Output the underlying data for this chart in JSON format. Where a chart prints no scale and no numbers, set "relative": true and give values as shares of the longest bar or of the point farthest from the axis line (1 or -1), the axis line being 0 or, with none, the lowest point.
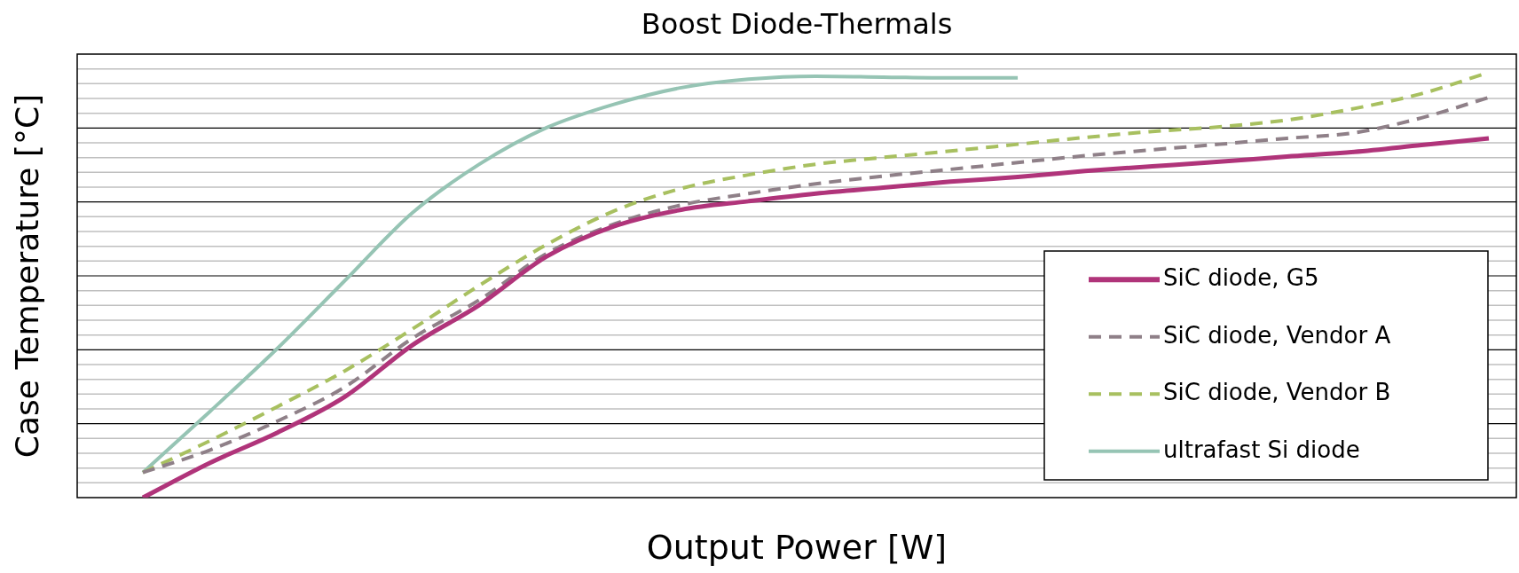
{
  "chart_data": {
    "type": "line",
    "title": "Boost Diode-Thermals",
    "xlabel": "Output Power [W]",
    "ylabel": "Case Temperature [°C]",
    "relative": true,
    "grid": true,
    "legend": "bottom right",
    "marker": "none",
    "categories": [
      null,
      null,
      null,
      null,
      null,
      null,
      null,
      null,
      null,
      null,
      null,
      null,
      null,
      null,
      null,
      null,
      null,
      null,
      null,
      null,
      null
    ],
    "series": [
      {
        "name": "SiC diode, G5",
        "color": "#b0347a",
        "line_style": "solid",
        "values": [
          0,
          0.082,
          0.153,
          0.237,
          0.358,
          0.453,
          0.567,
          0.638,
          0.677,
          0.697,
          0.715,
          0.729,
          0.743,
          0.754,
          0.768,
          0.779,
          0.79,
          0.802,
          0.813,
          0.829,
          0.845
        ]
      },
      {
        "name": "SiC diode, Vendor A",
        "color": "#8f8088",
        "line_style": "dashed",
        "values": [
          0.059,
          0.112,
          0.18,
          0.26,
          0.374,
          0.465,
          0.574,
          0.643,
          0.688,
          0.715,
          0.738,
          0.756,
          0.772,
          0.788,
          0.804,
          0.818,
          0.831,
          0.845,
          0.858,
          0.893,
          0.941
        ]
      },
      {
        "name": "SiC diode, Vendor B",
        "color": "#a8c060",
        "line_style": "dashed",
        "values": [
          0.059,
          0.134,
          0.214,
          0.298,
          0.396,
          0.499,
          0.595,
          0.674,
          0.727,
          0.759,
          0.784,
          0.8,
          0.815,
          0.831,
          0.847,
          0.861,
          0.872,
          0.888,
          0.915,
          0.95,
          1.0
        ]
      },
      {
        "name": "ultrafast Si diode",
        "color": "#96c4b4",
        "line_style": "solid",
        "values": [
          0.059,
          0.203,
          0.351,
          0.51,
          0.669,
          0.784,
          0.87,
          0.925,
          0.964,
          0.984,
          0.991,
          0.989,
          0.987,
          0.987,
          null,
          null,
          null,
          null,
          null,
          null,
          null
        ]
      }
    ]
  }
}
